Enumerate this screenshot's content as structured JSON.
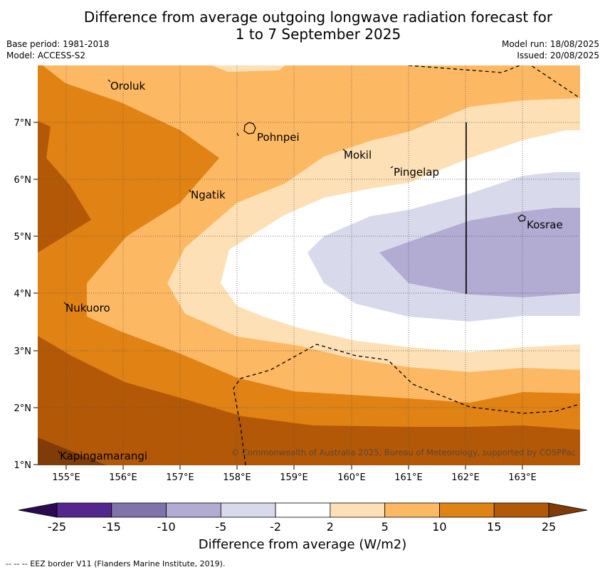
{
  "title_line1": "Difference from average outgoing longwave radiation forecast for",
  "title_line2": "1 to 7 September 2025",
  "meta_left": [
    "Base period: 1981-2018",
    "Model: ACCESS-S2"
  ],
  "meta_right": [
    "Model run: 18/08/2025",
    "Issued: 20/08/2025"
  ],
  "lat_ticks": [
    "7°N",
    "6°N",
    "5°N",
    "4°N",
    "3°N",
    "2°N",
    "1°N"
  ],
  "lon_ticks": [
    "155°E",
    "156°E",
    "157°E",
    "158°E",
    "159°E",
    "160°E",
    "161°E",
    "162°E",
    "163°E"
  ],
  "places": [
    "Oroluk",
    "Pohnpei",
    "Mokil",
    "Pingelap",
    "Ngatik",
    "Kosrae",
    "Nukuoro",
    "Kapingamarangi"
  ],
  "copyright": "© Commonwealth of Australia 2025, Bureau of Meteorology, supported by COSPPac",
  "colorbar": {
    "labels": [
      "-25",
      "-15",
      "-10",
      "-5",
      "-2",
      "2",
      "5",
      "10",
      "15",
      "25"
    ],
    "colors": [
      "#2b0a52",
      "#54278f",
      "#8073ac",
      "#b2abd2",
      "#d8daeb",
      "#ffffff",
      "#fee0b6",
      "#fdb863",
      "#e08214",
      "#b35806",
      "#7f3b08"
    ],
    "title": "Difference from average (W/m2)"
  },
  "legend_note": "--  --  -- EEZ border V11 (Flanders Marine Institute, 2019)."
}
